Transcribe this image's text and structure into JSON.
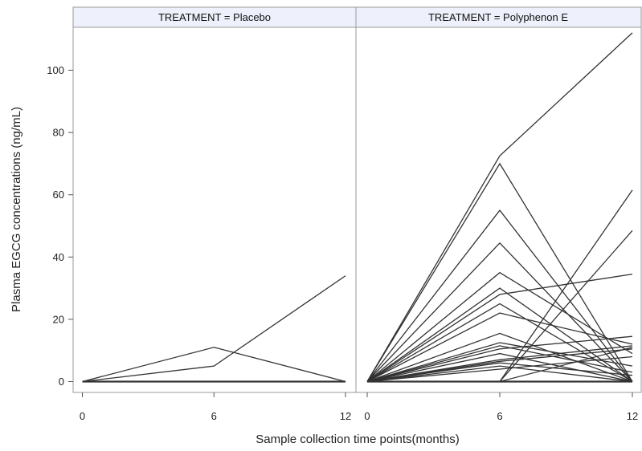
{
  "chart_data": {
    "type": "line",
    "xlabel": "Sample collection time points(months)",
    "ylabel": "Plasma EGCG concentrations (ng/mL)",
    "x_ticks": [
      0,
      6,
      12
    ],
    "y_ticks": [
      0,
      20,
      40,
      60,
      80,
      100
    ],
    "xlim": [
      0,
      12
    ],
    "ylim": [
      0,
      112
    ],
    "grid": false,
    "colors": {
      "line": "#333333",
      "strip": "#eef0fb",
      "frame": "#999999"
    },
    "panels": [
      {
        "label": "TREATMENT = Placebo",
        "series": [
          {
            "x": [
              0,
              6,
              12
            ],
            "y": [
              0,
              11,
              0
            ]
          },
          {
            "x": [
              0,
              6,
              12
            ],
            "y": [
              0,
              5,
              34
            ]
          },
          {
            "x": [
              0,
              6,
              12
            ],
            "y": [
              0,
              0,
              0
            ]
          }
        ]
      },
      {
        "label": "TREATMENT = Polyphenon E",
        "series": [
          {
            "x": [
              0,
              6,
              12
            ],
            "y": [
              0,
              72.5,
              112
            ]
          },
          {
            "x": [
              0,
              6,
              12
            ],
            "y": [
              0,
              70,
              0
            ]
          },
          {
            "x": [
              0,
              6,
              12
            ],
            "y": [
              0,
              55,
              0
            ]
          },
          {
            "x": [
              0,
              6,
              12
            ],
            "y": [
              0,
              44.5,
              0
            ]
          },
          {
            "x": [
              0,
              6,
              12
            ],
            "y": [
              0,
              35,
              9
            ]
          },
          {
            "x": [
              0,
              6,
              12
            ],
            "y": [
              0,
              30,
              0
            ]
          },
          {
            "x": [
              0,
              6,
              12
            ],
            "y": [
              0,
              28,
              34.5
            ]
          },
          {
            "x": [
              0,
              6,
              12
            ],
            "y": [
              0,
              25,
              0
            ]
          },
          {
            "x": [
              0,
              6,
              12
            ],
            "y": [
              0,
              22,
              12
            ]
          },
          {
            "x": [
              0,
              6,
              12
            ],
            "y": [
              0,
              15.5,
              0
            ]
          },
          {
            "x": [
              0,
              6,
              12
            ],
            "y": [
              0,
              12.5,
              5
            ]
          },
          {
            "x": [
              0,
              6,
              12
            ],
            "y": [
              0,
              11.5,
              3
            ]
          },
          {
            "x": [
              0,
              6,
              12
            ],
            "y": [
              0,
              10.5,
              14.5
            ]
          },
          {
            "x": [
              0,
              6,
              12
            ],
            "y": [
              0,
              9,
              0
            ]
          },
          {
            "x": [
              0,
              6,
              12
            ],
            "y": [
              0,
              7,
              11.5
            ]
          },
          {
            "x": [
              0,
              6,
              12
            ],
            "y": [
              0,
              6.5,
              10.5
            ]
          },
          {
            "x": [
              0,
              6,
              12
            ],
            "y": [
              0,
              6,
              2
            ]
          },
          {
            "x": [
              0,
              6,
              12
            ],
            "y": [
              0,
              5,
              0
            ]
          },
          {
            "x": [
              0,
              6,
              12
            ],
            "y": [
              0,
              0,
              61.5
            ]
          },
          {
            "x": [
              0,
              6,
              12
            ],
            "y": [
              0,
              0,
              48.5
            ]
          },
          {
            "x": [
              0,
              6,
              12
            ],
            "y": [
              0,
              0,
              11
            ]
          },
          {
            "x": [
              0,
              6,
              12
            ],
            "y": [
              0,
              4,
              8
            ]
          },
          {
            "x": [
              0,
              6,
              12
            ],
            "y": [
              0,
              0,
              0
            ]
          }
        ]
      }
    ]
  }
}
